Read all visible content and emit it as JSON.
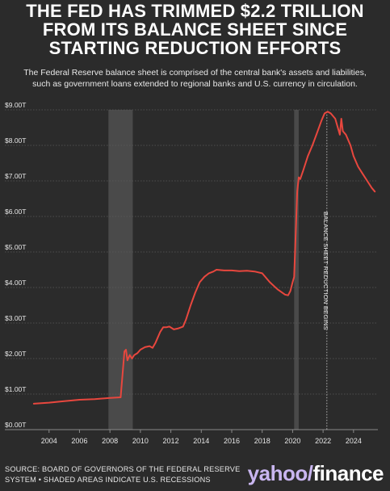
{
  "header": {
    "title_lines": [
      "THE FED HAS TRIMMED $2.2 TRILLION",
      "FROM ITS BALANCE SHEET SINCE",
      "STARTING REDUCTION EFFORTS"
    ],
    "subtitle_lines": [
      "The Federal Reserve balance sheet is comprised of the central bank's assets and liabilities,",
      "such as government loans extended to regional banks and U.S. currency in circulation."
    ]
  },
  "footer": {
    "source_lines": [
      "SOURCE: BOARD OF GOVERNORS OF THE FEDERAL RESERVE",
      "SYSTEM • SHADED AREAS INDICATE U.S. RECESSIONS"
    ],
    "logo_yahoo": "yahoo",
    "logo_slash": "/",
    "logo_finance": "finance"
  },
  "colors": {
    "background": "#2b2b2b",
    "line": "#e8473e",
    "recession": "#4a4a4a",
    "grid": "#5a5a5a"
  },
  "chart_data": {
    "type": "line",
    "title": "",
    "xlabel": "",
    "ylabel": "",
    "xlim": [
      2002.9,
      2025.6
    ],
    "ylim": [
      0,
      9
    ],
    "x_ticks": [
      2004,
      2006,
      2008,
      2010,
      2012,
      2014,
      2016,
      2018,
      2020,
      2022,
      2024
    ],
    "y_ticks": [
      0,
      1,
      2,
      3,
      4,
      5,
      6,
      7,
      8,
      9
    ],
    "y_tick_labels": [
      "$0.00T",
      "$1.00T",
      "$2.00T",
      "$3.00T",
      "$4.00T",
      "$5.00T",
      "$6.00T",
      "$7.00T",
      "$8.00T",
      "$9.00T"
    ],
    "grid": "horizontal",
    "recessions": [
      [
        2007.9,
        2009.5
      ],
      [
        2020.1,
        2020.4
      ]
    ],
    "annotations": [
      {
        "x": 2022.25,
        "text": "BALANCE SHEET REDUCTION BEGINS"
      }
    ],
    "series": [
      {
        "x": [
          2003.0,
          2004.0,
          2005.0,
          2006.0,
          2007.0,
          2008.0,
          2008.7,
          2008.8,
          2008.95,
          2009.05,
          2009.15,
          2009.3,
          2009.45,
          2009.6,
          2009.8,
          2010.0,
          2010.3,
          2010.6,
          2010.8,
          2011.0,
          2011.3,
          2011.5,
          2011.7,
          2011.9,
          2012.2,
          2012.5,
          2012.8,
          2013.0,
          2013.3,
          2013.6,
          2013.9,
          2014.2,
          2014.5,
          2014.8,
          2015.0,
          2015.5,
          2016.0,
          2016.5,
          2017.0,
          2017.5,
          2018.0,
          2018.5,
          2019.0,
          2019.5,
          2019.7,
          2019.85,
          2020.0,
          2020.1,
          2020.2,
          2020.3,
          2020.4,
          2020.5,
          2020.7,
          2021.0,
          2021.3,
          2021.6,
          2021.9,
          2022.1,
          2022.3,
          2022.5,
          2022.8,
          2023.0,
          2023.1,
          2023.2,
          2023.3,
          2023.5,
          2023.8,
          2024.0,
          2024.3,
          2024.6,
          2024.9,
          2025.2,
          2025.4
        ],
        "y": [
          0.73,
          0.76,
          0.8,
          0.84,
          0.86,
          0.89,
          0.91,
          1.4,
          2.2,
          2.25,
          1.95,
          2.1,
          2.0,
          2.1,
          2.15,
          2.25,
          2.32,
          2.35,
          2.3,
          2.45,
          2.75,
          2.88,
          2.88,
          2.9,
          2.82,
          2.85,
          2.9,
          3.1,
          3.5,
          3.85,
          4.15,
          4.3,
          4.4,
          4.45,
          4.5,
          4.48,
          4.48,
          4.46,
          4.47,
          4.45,
          4.4,
          4.15,
          3.95,
          3.8,
          3.78,
          3.9,
          4.15,
          4.3,
          5.5,
          6.7,
          7.1,
          7.05,
          7.3,
          7.7,
          8.0,
          8.35,
          8.7,
          8.9,
          8.95,
          8.9,
          8.75,
          8.45,
          8.3,
          8.75,
          8.4,
          8.3,
          8.0,
          7.7,
          7.4,
          7.2,
          7.0,
          6.8,
          6.7
        ]
      }
    ]
  }
}
